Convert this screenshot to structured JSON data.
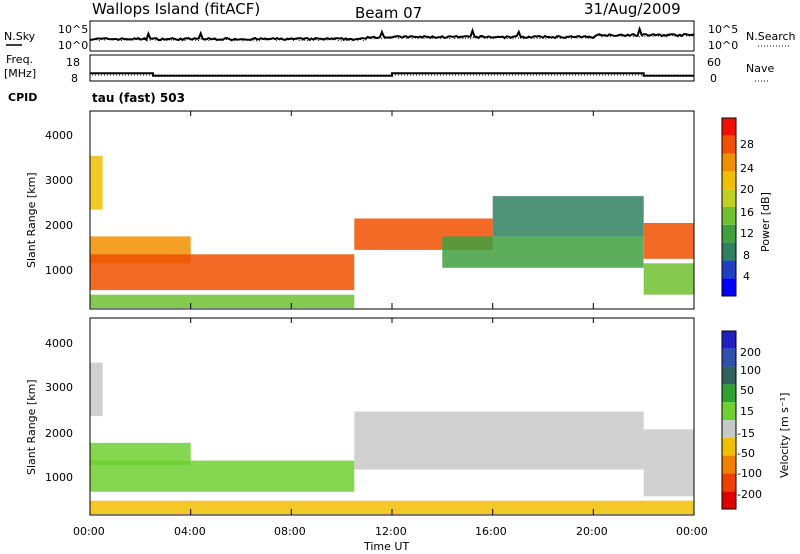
{
  "header": {
    "station": "Wallops Island (fitACF)",
    "beam": "Beam 07",
    "date": "31/Aug/2009"
  },
  "noise_panel": {
    "left_label": "N.Sky",
    "right_label": "N.Search",
    "ticks_left": [
      "10^5",
      "10^0"
    ],
    "ticks_right": [
      "10^5",
      "10^0"
    ]
  },
  "freq_panel": {
    "left_label_top": "Freq.",
    "left_label_bottom": "[MHz]",
    "right_label": "Nave",
    "ticks_left": [
      "18",
      "8"
    ],
    "ticks_right": [
      "60",
      "0"
    ]
  },
  "cpid": {
    "label": "CPID",
    "value": "tau (fast) 503"
  },
  "power_panel": {
    "ylabel": "Slant Range [km]",
    "yticks": [
      "4000",
      "3000",
      "2000",
      "1000"
    ],
    "colorbar_label": "Power [dB]",
    "colorbar_ticks": [
      "28",
      "24",
      "20",
      "16",
      "12",
      "8",
      "4"
    ],
    "colorbar_colors": [
      "#0000ff",
      "#2040c0",
      "#308060",
      "#40a040",
      "#70c030",
      "#c0d020",
      "#f0c000",
      "#f09000",
      "#f05000",
      "#f01000"
    ]
  },
  "velocity_panel": {
    "ylabel": "Slant Range [km]",
    "yticks": [
      "4000",
      "3000",
      "2000",
      "1000"
    ],
    "colorbar_label": "Velocity [m s⁻¹]",
    "colorbar_ticks": [
      "200",
      "100",
      "50",
      "15",
      "-15",
      "-50",
      "-100",
      "-200"
    ],
    "colorbar_colors": [
      "#2020c0",
      "#3050b0",
      "#306060",
      "#30a030",
      "#70d030",
      "#c8c8c8",
      "#f0c000",
      "#f08000",
      "#f04000",
      "#e00000"
    ]
  },
  "time_axis": {
    "label": "Time UT",
    "ticks": [
      "00:00",
      "04:00",
      "08:00",
      "12:00",
      "16:00",
      "20:00",
      "00:00"
    ]
  },
  "chart_data": {
    "type": "heatmap",
    "xlabel": "Time UT",
    "ylabel": "Slant Range [km]",
    "xlim_hours": [
      0,
      24
    ],
    "ylim_km": [
      180,
      4600
    ],
    "freq_steps": [
      {
        "start": 0,
        "end": 2.5,
        "mhz": 11
      },
      {
        "start": 2.5,
        "end": 12,
        "mhz": 10
      },
      {
        "start": 12,
        "end": 22,
        "mhz": 11
      },
      {
        "start": 22,
        "end": 24,
        "mhz": 10
      }
    ],
    "power_regions": [
      {
        "t0": 0.0,
        "t1": 0.5,
        "r0": 2400,
        "r1": 3600,
        "db": 20
      },
      {
        "t0": 0.0,
        "t1": 4.0,
        "r0": 1200,
        "r1": 1800,
        "db": 22
      },
      {
        "t0": 0.0,
        "t1": 10.5,
        "r0": 600,
        "r1": 1400,
        "db": 24
      },
      {
        "t0": 0.0,
        "t1": 10.5,
        "r0": 200,
        "r1": 500,
        "db": 14
      },
      {
        "t0": 10.5,
        "t1": 16.0,
        "r0": 1500,
        "r1": 2200,
        "db": 26
      },
      {
        "t0": 14.0,
        "t1": 22.0,
        "r0": 1100,
        "r1": 1800,
        "db": 10
      },
      {
        "t0": 16.0,
        "t1": 22.0,
        "r0": 1800,
        "r1": 2700,
        "db": 8
      },
      {
        "t0": 22.0,
        "t1": 24.0,
        "r0": 1300,
        "r1": 2100,
        "db": 24
      },
      {
        "t0": 22.0,
        "t1": 24.0,
        "r0": 500,
        "r1": 1200,
        "db": 12
      }
    ],
    "velocity_regions": [
      {
        "t0": 0.0,
        "t1": 0.5,
        "r0": 2400,
        "r1": 3600,
        "v": 0
      },
      {
        "t0": 0.0,
        "t1": 4.0,
        "r0": 1300,
        "r1": 1800,
        "v": 40
      },
      {
        "t0": 0.0,
        "t1": 10.5,
        "r0": 700,
        "r1": 1400,
        "v": 40
      },
      {
        "t0": 0.0,
        "t1": 24.0,
        "r0": 200,
        "r1": 500,
        "v": -30
      },
      {
        "t0": 10.5,
        "t1": 22.0,
        "r0": 1200,
        "r1": 2500,
        "v": 0
      },
      {
        "t0": 22.0,
        "t1": 24.0,
        "r0": 600,
        "r1": 2100,
        "v": 0
      }
    ]
  }
}
